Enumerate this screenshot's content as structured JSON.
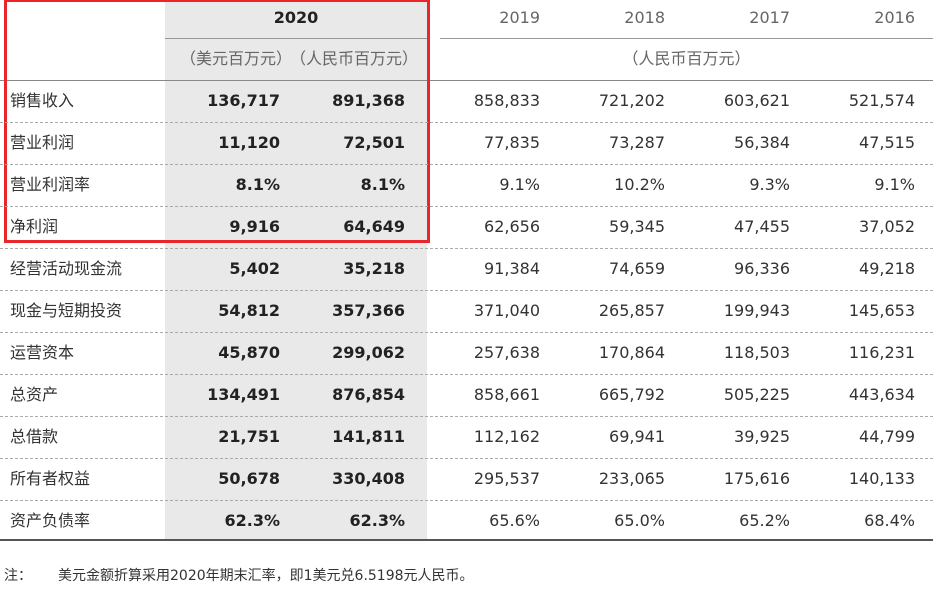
{
  "header": {
    "year_2020": "2020",
    "years": [
      "2019",
      "2018",
      "2017",
      "2016"
    ],
    "units_2020": [
      "（美元百万元）",
      "（人民币百万元）"
    ],
    "units_other": "（人民币百万元）"
  },
  "table": {
    "rows": [
      [
        "销售收入",
        "136,717",
        "891,368",
        "858,833",
        "721,202",
        "603,621",
        "521,574"
      ],
      [
        "营业利润",
        "11,120",
        "72,501",
        "77,835",
        "73,287",
        "56,384",
        "47,515"
      ],
      [
        "营业利润率",
        "8.1%",
        "8.1%",
        "9.1%",
        "10.2%",
        "9.3%",
        "9.1%"
      ],
      [
        "净利润",
        "9,916",
        "64,649",
        "62,656",
        "59,345",
        "47,455",
        "37,052"
      ],
      [
        "经营活动现金流",
        "5,402",
        "35,218",
        "91,384",
        "74,659",
        "96,336",
        "49,218"
      ],
      [
        "现金与短期投资",
        "54,812",
        "357,366",
        "371,040",
        "265,857",
        "199,943",
        "145,653"
      ],
      [
        "运营资本",
        "45,870",
        "299,062",
        "257,638",
        "170,864",
        "118,503",
        "116,231"
      ],
      [
        "总资产",
        "134,491",
        "876,854",
        "858,661",
        "665,792",
        "505,225",
        "443,634"
      ],
      [
        "总借款",
        "21,751",
        "141,811",
        "112,162",
        "69,941",
        "39,925",
        "44,799"
      ],
      [
        "所有者权益",
        "50,678",
        "330,408",
        "295,537",
        "233,065",
        "175,616",
        "140,133"
      ],
      [
        "资产负债率",
        "62.3%",
        "62.3%",
        "65.6%",
        "65.0%",
        "65.2%",
        "68.4%"
      ]
    ]
  },
  "note": {
    "label": "注：",
    "text": "美元金额折算采用2020年期末汇率，即1美元兑6.5198元人民币。"
  }
}
